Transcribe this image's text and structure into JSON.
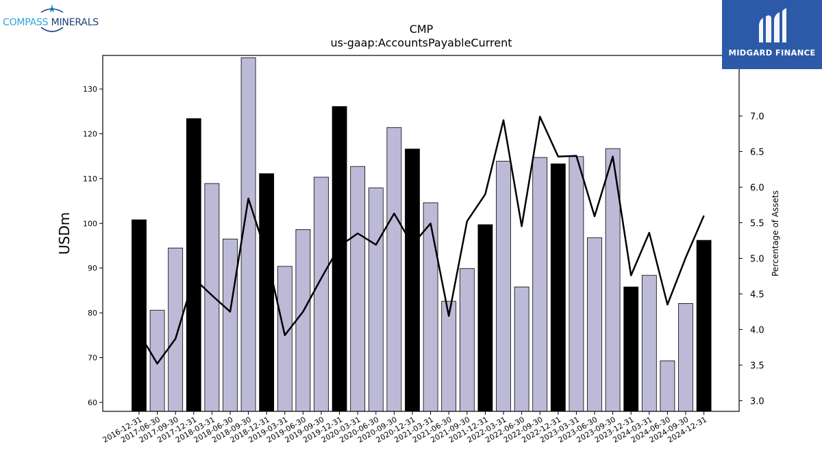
{
  "logos": {
    "left": {
      "text_a": "COMPASS",
      "text_b": " MINERALS",
      "accent": "#2aa6d9",
      "dark": "#1d3f73"
    },
    "right": {
      "text": "MIDGARD FINANCE",
      "background": "#2c5aa8"
    }
  },
  "chart_data": {
    "type": "bar",
    "title": "CMP",
    "subtitle": "us-gaap:AccountsPayableCurrent",
    "ylabel": "USDm",
    "y2label": "Percentage of Assets",
    "ylim": [
      58,
      137.5
    ],
    "y2lim": [
      2.85,
      7.85
    ],
    "yticks": [
      60,
      70,
      80,
      90,
      100,
      110,
      120,
      130
    ],
    "y2ticks": [
      "3.0",
      "3.5",
      "4.0",
      "4.5",
      "5.0",
      "5.5",
      "6.0",
      "6.5",
      "7.0"
    ],
    "categories": [
      "2016-12-31",
      "2017-06-30",
      "2017-09-30",
      "2017-12-31",
      "2018-03-31",
      "2018-06-30",
      "2018-09-30",
      "2018-12-31",
      "2019-03-31",
      "2019-06-30",
      "2019-09-30",
      "2019-12-31",
      "2020-03-31",
      "2020-06-30",
      "2020-09-30",
      "2020-12-31",
      "2021-03-31",
      "2021-06-30",
      "2021-09-30",
      "2021-12-31",
      "2022-03-31",
      "2022-06-30",
      "2022-09-30",
      "2022-12-31",
      "2023-03-31",
      "2023-06-30",
      "2023-09-30",
      "2023-12-31",
      "2024-03-31",
      "2024-06-30",
      "2024-09-30",
      "2024-12-31"
    ],
    "values": [
      100.8,
      80.6,
      94.5,
      123.4,
      108.9,
      96.5,
      137.0,
      111.1,
      90.4,
      98.6,
      110.3,
      126.1,
      112.7,
      107.9,
      121.4,
      116.6,
      104.6,
      82.6,
      89.9,
      99.7,
      113.9,
      85.8,
      114.7,
      113.3,
      114.9,
      96.8,
      116.7,
      85.8,
      88.4,
      69.3,
      82.1,
      96.2
    ],
    "highlight": [
      true,
      false,
      false,
      true,
      false,
      false,
      false,
      true,
      false,
      false,
      false,
      true,
      false,
      false,
      false,
      true,
      false,
      false,
      false,
      true,
      false,
      false,
      false,
      true,
      false,
      false,
      false,
      true,
      false,
      false,
      false,
      true
    ],
    "line_series": {
      "values": [
        3.95,
        3.52,
        3.87,
        4.72,
        4.48,
        4.25,
        5.84,
        5.05,
        3.92,
        4.25,
        4.72,
        5.17,
        5.35,
        5.19,
        5.63,
        5.19,
        5.49,
        4.19,
        5.52,
        5.9,
        6.94,
        5.45,
        6.99,
        6.43,
        6.44,
        5.59,
        6.43,
        4.76,
        5.36,
        4.35,
        5.01,
        5.6
      ]
    },
    "colors": {
      "bar": "#bdbad8",
      "bar_highlight": "#000000",
      "line": "#000000"
    },
    "grid": false,
    "legend": "none"
  }
}
